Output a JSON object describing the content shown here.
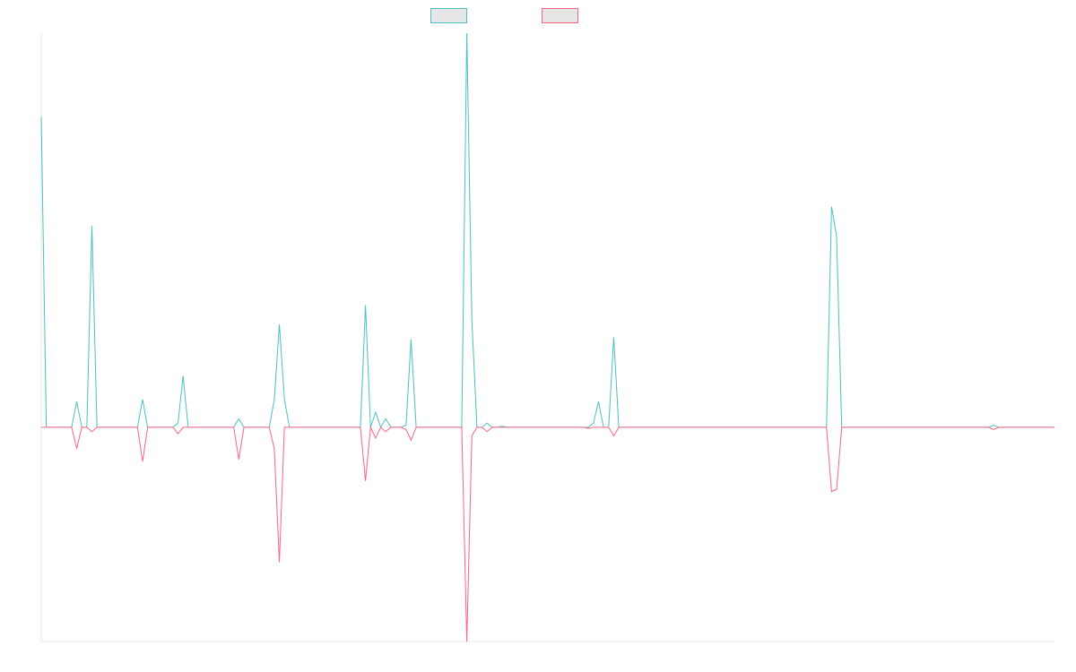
{
  "chart_data": {
    "type": "line",
    "categories": [
      null,
      null,
      null,
      null,
      null,
      null,
      null,
      null,
      null,
      null,
      null,
      null,
      null,
      null,
      null,
      null,
      null,
      null,
      null,
      null,
      null,
      null,
      null,
      null,
      null,
      null,
      null,
      null,
      null,
      null,
      null,
      null,
      null,
      null,
      null,
      null,
      null,
      null,
      null,
      null,
      null,
      null,
      null,
      null,
      null,
      null,
      null,
      null,
      null,
      null,
      null,
      null,
      null,
      null,
      null,
      null,
      null,
      null,
      null,
      null,
      null,
      null,
      null,
      null,
      null,
      null,
      null,
      null,
      null,
      null,
      null,
      null,
      null,
      null,
      null,
      null,
      null,
      null,
      null,
      null,
      null,
      null,
      null,
      null,
      null,
      null,
      null,
      null,
      null,
      null,
      null,
      null,
      null,
      null,
      null,
      null,
      null,
      null,
      null,
      null,
      null,
      null,
      null,
      null,
      null,
      null,
      null,
      null,
      null,
      null,
      null,
      null,
      null,
      null,
      null,
      null,
      null,
      null,
      null,
      null,
      null,
      null,
      null,
      null,
      null,
      null,
      null,
      null,
      null,
      null,
      null,
      null,
      null,
      null,
      null,
      null,
      null,
      null,
      null,
      null,
      null,
      null,
      null,
      null,
      null,
      null,
      null,
      null,
      null,
      null,
      null,
      null,
      null,
      null,
      null,
      null,
      null,
      null,
      null,
      null,
      null,
      null,
      null,
      null,
      null,
      null,
      null,
      null,
      null,
      null,
      null,
      null,
      null,
      null,
      null,
      null,
      null,
      null,
      null,
      null,
      null,
      null,
      null,
      null,
      null,
      null,
      null,
      null,
      null,
      null,
      null,
      null,
      null,
      null,
      null,
      null,
      null,
      null,
      null,
      null,
      null
    ],
    "series": [
      {
        "color": "#4bc0c0",
        "values": [
          145,
          0,
          0,
          0,
          0,
          0,
          0,
          12,
          0,
          0,
          94,
          0,
          0,
          0,
          0,
          0,
          0,
          0,
          0,
          0,
          13,
          0,
          0,
          0,
          0,
          0,
          0,
          2,
          24,
          0,
          0,
          0,
          0,
          0,
          0,
          0,
          0,
          0,
          0,
          4,
          0,
          0,
          0,
          0,
          0,
          0,
          13,
          48,
          13,
          0,
          0,
          0,
          0,
          0,
          0,
          0,
          0,
          0,
          0,
          0,
          0,
          0,
          0,
          0,
          57,
          0,
          7,
          0,
          4,
          0,
          0,
          0,
          1,
          41,
          0,
          0,
          0,
          0,
          0,
          0,
          0,
          0,
          0,
          0,
          184,
          50,
          0,
          0,
          2,
          0,
          0,
          0.5,
          0,
          0,
          0,
          0,
          0,
          0,
          0,
          0,
          0,
          0,
          0,
          0,
          0,
          0,
          0,
          0,
          0,
          2,
          12,
          0,
          0,
          42,
          0,
          0,
          0,
          0,
          0,
          0,
          0,
          0,
          0,
          0,
          0,
          0,
          0,
          0,
          0,
          0,
          0,
          0,
          0,
          0,
          0,
          0,
          0,
          0,
          0,
          0,
          0,
          0,
          0,
          0,
          0,
          0,
          0,
          0,
          0,
          0,
          0,
          0,
          0,
          0,
          0,
          0,
          103,
          89,
          0,
          0,
          0,
          0,
          0,
          0,
          0,
          0,
          0,
          0,
          0,
          0,
          0,
          0,
          0,
          0,
          0,
          0,
          0,
          0,
          0,
          0,
          0,
          0,
          0,
          0,
          0,
          0,
          0,
          0,
          1,
          0,
          0,
          0,
          0,
          0,
          0,
          0,
          0,
          0,
          0,
          0,
          0
        ]
      },
      {
        "color": "#ff6384",
        "values": [
          0,
          0,
          0,
          0,
          0,
          0,
          0,
          -10,
          0,
          0,
          -2,
          0,
          0,
          0,
          0,
          0,
          0,
          0,
          0,
          0,
          -16,
          0,
          0,
          0,
          0,
          0,
          0,
          -3,
          0,
          0,
          0,
          0,
          0,
          0,
          0,
          0,
          0,
          0,
          0,
          -15,
          0,
          0,
          0,
          0,
          0,
          0,
          -10,
          -63,
          0,
          0,
          0,
          0,
          0,
          0,
          0,
          0,
          0,
          0,
          0,
          0,
          0,
          0,
          0,
          0,
          -25,
          0,
          -5,
          0,
          -2,
          0,
          0,
          0,
          -1,
          -6,
          0,
          0,
          0,
          0,
          0,
          0,
          0,
          0,
          0,
          0,
          -100,
          -4,
          0,
          0,
          -2,
          0,
          0,
          0,
          0,
          0,
          0,
          0,
          0,
          0,
          0,
          0,
          0,
          0,
          0,
          0,
          0,
          0,
          0,
          0,
          -0.5,
          0,
          0,
          0,
          0,
          -4,
          0,
          0,
          0,
          0,
          0,
          0,
          0,
          0,
          0,
          0,
          0,
          0,
          0,
          0,
          0,
          0,
          0,
          0,
          0,
          0,
          0,
          0,
          0,
          0,
          0,
          0,
          0,
          0,
          0,
          0,
          0,
          0,
          0,
          0,
          0,
          0,
          0,
          0,
          0,
          0,
          0,
          0,
          -30,
          -29,
          0,
          0,
          0,
          0,
          0,
          0,
          0,
          0,
          0,
          0,
          0,
          0,
          0,
          0,
          0,
          0,
          0,
          0,
          0,
          0,
          0,
          0,
          0,
          0,
          0,
          0,
          0,
          0,
          0,
          0,
          -1,
          0,
          0,
          0,
          0,
          0,
          0,
          0,
          0,
          0,
          0,
          0,
          0
        ]
      }
    ],
    "ylim": [
      -100,
      184
    ]
  }
}
